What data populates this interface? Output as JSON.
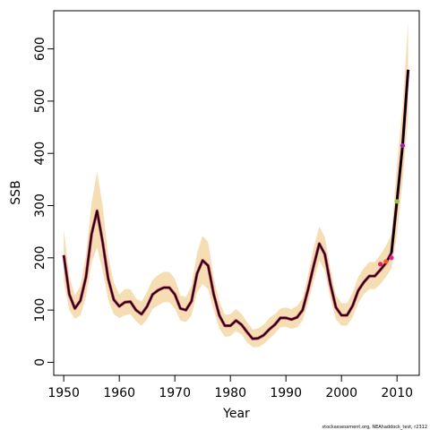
{
  "chart_data": {
    "type": "line",
    "title": "",
    "xlabel": "Year",
    "ylabel": "SSB",
    "xlim": [
      1948.2,
      2014
    ],
    "ylim": [
      -25,
      673
    ],
    "x_ticks": [
      1950,
      1960,
      1970,
      1980,
      1990,
      2000,
      2010
    ],
    "y_ticks": [
      0,
      100,
      200,
      300,
      400,
      500,
      600
    ],
    "grid": false,
    "legend": "none",
    "footnote": "stockassessment.org, NEAhaddock_test, r2312",
    "colors": {
      "band": "#f5deb3",
      "estimate": "#000000",
      "retro": "#c2185b"
    },
    "series": [
      {
        "x": [
          1950,
          1951,
          1952,
          1953,
          1954,
          1955,
          1956,
          1957,
          1958,
          1959,
          1960,
          1961,
          1962,
          1963,
          1964,
          1965,
          1966,
          1967,
          1968,
          1969,
          1970,
          1971,
          1972,
          1973,
          1974,
          1975,
          1976,
          1977,
          1978,
          1979,
          1980,
          1981,
          1982,
          1983,
          1984,
          1985,
          1986,
          1987,
          1988,
          1989,
          1990,
          1991,
          1992,
          1993,
          1994,
          1995,
          1996,
          1997,
          1998,
          1999,
          2000,
          2001,
          2002,
          2003,
          2004,
          2005,
          2006,
          2007,
          2008,
          2009,
          2010,
          2011,
          2012
        ],
        "y": [
          205,
          130,
          103,
          118,
          163,
          245,
          290,
          230,
          160,
          120,
          107,
          115,
          116,
          100,
          92,
          107,
          130,
          138,
          143,
          143,
          130,
          103,
          100,
          117,
          170,
          195,
          185,
          130,
          90,
          70,
          70,
          80,
          72,
          58,
          45,
          46,
          52,
          63,
          72,
          85,
          85,
          82,
          86,
          100,
          140,
          185,
          227,
          207,
          150,
          105,
          90,
          90,
          108,
          137,
          153,
          165,
          165,
          177,
          190,
          210,
          310,
          415,
          560
        ],
        "lower": [
          155,
          100,
          83,
          90,
          125,
          190,
          220,
          175,
          120,
          92,
          85,
          90,
          92,
          79,
          70,
          82,
          102,
          109,
          115,
          115,
          103,
          80,
          77,
          90,
          133,
          150,
          140,
          100,
          65,
          49,
          50,
          60,
          53,
          38,
          29,
          29,
          35,
          45,
          55,
          67,
          68,
          64,
          67,
          80,
          115,
          155,
          195,
          175,
          122,
          82,
          70,
          70,
          86,
          113,
          130,
          140,
          140,
          150,
          163,
          180,
          245,
          345,
          470
        ],
        "upper": [
          255,
          165,
          128,
          146,
          205,
          305,
          365,
          300,
          205,
          153,
          130,
          140,
          140,
          122,
          116,
          135,
          158,
          167,
          173,
          173,
          160,
          128,
          125,
          147,
          210,
          242,
          230,
          162,
          117,
          91,
          92,
          102,
          93,
          77,
          63,
          65,
          72,
          85,
          92,
          103,
          105,
          102,
          108,
          123,
          168,
          220,
          260,
          240,
          180,
          128,
          113,
          113,
          133,
          163,
          180,
          192,
          192,
          206,
          223,
          245,
          380,
          490,
          652
        ]
      }
    ],
    "retro_terminal_points": [
      {
        "x": 2007,
        "y": 188,
        "color": "#e91e63"
      },
      {
        "x": 2008,
        "y": 193,
        "color": "#ff5722"
      },
      {
        "x": 2009,
        "y": 200,
        "color": "#e91e9c"
      },
      {
        "x": 2010,
        "y": 308,
        "color": "#8bc34a"
      },
      {
        "x": 2011,
        "y": 415,
        "color": "#9c27b0"
      }
    ]
  }
}
